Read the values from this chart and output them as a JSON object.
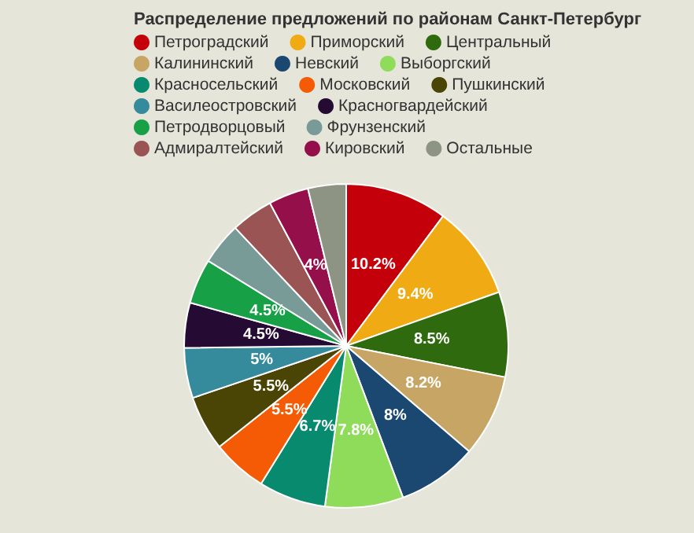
{
  "chart_data": {
    "type": "pie",
    "title": "Распределение предложений по районам Санкт-Петербург",
    "categories": [
      "Петроградский",
      "Приморский",
      "Центральный",
      "Калининский",
      "Невский",
      "Выборгский",
      "Красносельский",
      "Московский",
      "Пушкинский",
      "Василеостровский",
      "Красногвардейский",
      "Петродворцовый",
      "Фрунзенский",
      "Адмиралтейский",
      "Кировский",
      "Остальные"
    ],
    "values": [
      10.2,
      9.4,
      8.5,
      8.2,
      8,
      7.8,
      6.7,
      5.5,
      5.5,
      5,
      4.5,
      4.5,
      4.2,
      4.2,
      4,
      3.8
    ],
    "value_labels": [
      "10.2%",
      "9.4%",
      "8.5%",
      "8.2%",
      "8%",
      "7.8%",
      "6.7%",
      "5.5%",
      "5.5%",
      "5%",
      "4.5%",
      "4.5%",
      null,
      null,
      "4%",
      null
    ],
    "colors": [
      "#c4000b",
      "#f0aa14",
      "#2f6b0e",
      "#c7a564",
      "#1b4870",
      "#8fdc5a",
      "#078a6e",
      "#f55b05",
      "#4a4505",
      "#358a9c",
      "#250a34",
      "#17a046",
      "#789b98",
      "#9a5454",
      "#950f4b",
      "#8e9484"
    ],
    "legend": "top"
  }
}
